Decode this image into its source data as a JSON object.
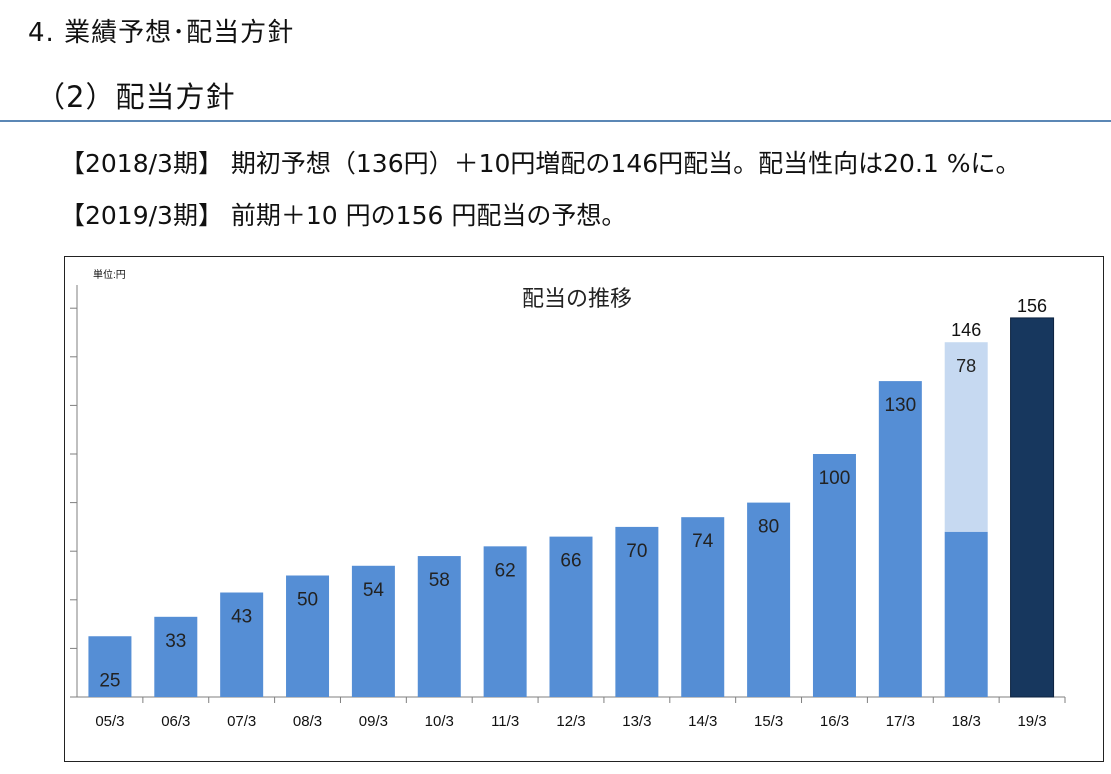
{
  "header": {
    "section_title": "4. 業績予想･配当方針",
    "sub_title": "（2）配当方針"
  },
  "body": {
    "line1_period": "【2018/3期】",
    "line1_text": "期初予想（136円）＋10円増配の146円配当。配当性向は20.1 %に。",
    "line2_period": "【2019/3期】",
    "line2_text": "前期＋10 円の156 円配当の予想。"
  },
  "colors": {
    "bar": "#558ed5",
    "bar_increase": "#c6d9f1",
    "bar_forecast": "#17375e",
    "axis": "#7f7f7f"
  },
  "chart_data": {
    "type": "bar",
    "title": "配当の推移",
    "unit_label": "単位:円",
    "categories": [
      "05/3",
      "06/3",
      "07/3",
      "08/3",
      "09/3",
      "10/3",
      "11/3",
      "12/3",
      "13/3",
      "14/3",
      "15/3",
      "16/3",
      "17/3",
      "18/3",
      "19/3"
    ],
    "values": [
      25,
      33,
      43,
      50,
      54,
      58,
      62,
      66,
      70,
      74,
      80,
      100,
      130,
      146,
      156
    ],
    "data_labels": [
      "25",
      "33",
      "43",
      "50",
      "54",
      "58",
      "62",
      "66",
      "70",
      "74",
      "80",
      "100",
      "130",
      "146",
      "156"
    ],
    "stacked_segment": {
      "category": "18/3",
      "base": 68,
      "increase": 78,
      "increase_label": "78",
      "total_label": "146"
    },
    "forecast_category": "19/3",
    "ylim": [
      0,
      160
    ],
    "y_tick_step": 20,
    "show_tick_labels": false,
    "grid": false,
    "legend": "none"
  }
}
